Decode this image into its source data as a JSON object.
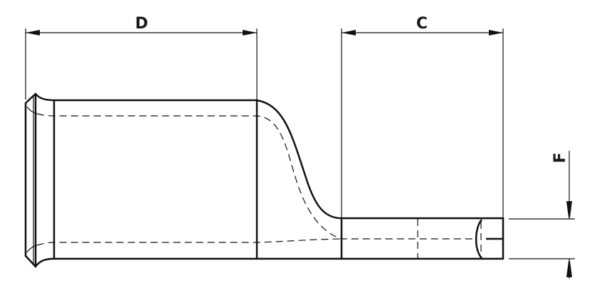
{
  "dimensions": {
    "d_label": "D",
    "c_label": "C",
    "f_label": "F"
  },
  "colors": {
    "line": "#111111",
    "background": "#ffffff"
  }
}
